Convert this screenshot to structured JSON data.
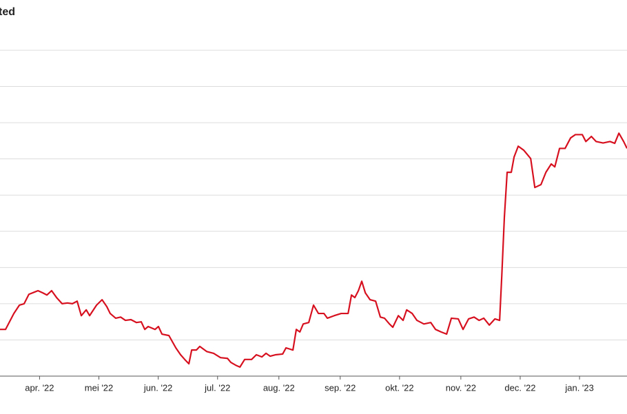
{
  "chart_data": {
    "type": "line",
    "title": "ted",
    "xlim": [
      0,
      317
    ],
    "xticks": [
      {
        "value": 20,
        "label": "apr. '22"
      },
      {
        "value": 50,
        "label": "mei '22"
      },
      {
        "value": 80,
        "label": "jun. '22"
      },
      {
        "value": 110,
        "label": "jul. '22"
      },
      {
        "value": 141,
        "label": "aug. '22"
      },
      {
        "value": 172,
        "label": "sep. '22"
      },
      {
        "value": 202,
        "label": "okt. '22"
      },
      {
        "value": 233,
        "label": "nov. '22"
      },
      {
        "value": 263,
        "label": "dec. '22"
      },
      {
        "value": 293,
        "label": "jan. '23"
      }
    ],
    "ylim": [
      0,
      9
    ],
    "gridlines": [
      0,
      1,
      2,
      3,
      4,
      5,
      6,
      7,
      8,
      9
    ],
    "grid": true,
    "x": [
      0,
      2.8,
      7,
      9.8,
      12.2,
      14.6,
      17.4,
      19.2,
      21.6,
      23.7,
      26.1,
      28.6,
      31.4,
      34.1,
      36.6,
      39,
      41.1,
      43.6,
      45.3,
      48.8,
      51.6,
      54,
      55.7,
      58.5,
      61,
      63.4,
      66.2,
      69,
      71.4,
      73.2,
      74.9,
      78.4,
      80.1,
      81.9,
      85.4,
      88.9,
      91.3,
      93.4,
      95.5,
      96.9,
      99.3,
      101,
      104.5,
      108,
      111.5,
      115,
      116.7,
      119.2,
      121.3,
      123.7,
      127.2,
      129.6,
      132.4,
      134.5,
      136.6,
      139.4,
      142.9,
      144.6,
      148.1,
      149.8,
      151.6,
      153.3,
      156.1,
      158.5,
      161,
      163.8,
      165.5,
      169,
      172.5,
      176,
      177.7,
      179.4,
      181.2,
      182.9,
      184.7,
      187.1,
      189.9,
      192.3,
      194.4,
      196.9,
      198.6,
      201.4,
      203.8,
      205.6,
      208.4,
      210.8,
      214.3,
      217.8,
      220.2,
      223,
      225.8,
      228.2,
      231.7,
      234.1,
      236.9,
      239.7,
      242.2,
      244.6,
      247.4,
      250.2,
      252.6,
      253.7,
      255,
      256.4,
      258.5,
      259.9,
      262,
      264.8,
      268.3,
      270.4,
      273.5,
      276,
      278.7,
      280.5,
      282.9,
      285.7,
      288.5,
      290.9,
      294.4,
      296.2,
      299,
      301.4,
      304.9,
      308.4,
      310.8,
      312.9,
      315.3,
      317
    ],
    "series": [
      {
        "color": "#d7101f",
        "values": [
          1.29,
          1.29,
          1.73,
          1.96,
          2.0,
          2.26,
          2.32,
          2.36,
          2.3,
          2.24,
          2.36,
          2.17,
          2.0,
          2.02,
          2.0,
          2.07,
          1.67,
          1.83,
          1.67,
          1.96,
          2.11,
          1.92,
          1.73,
          1.6,
          1.63,
          1.54,
          1.56,
          1.48,
          1.5,
          1.29,
          1.37,
          1.29,
          1.37,
          1.16,
          1.12,
          0.78,
          0.59,
          0.46,
          0.34,
          0.72,
          0.72,
          0.82,
          0.68,
          0.63,
          0.51,
          0.49,
          0.38,
          0.3,
          0.25,
          0.46,
          0.46,
          0.59,
          0.53,
          0.63,
          0.55,
          0.59,
          0.61,
          0.78,
          0.72,
          1.29,
          1.22,
          1.44,
          1.48,
          1.96,
          1.73,
          1.73,
          1.6,
          1.67,
          1.73,
          1.73,
          2.24,
          2.17,
          2.36,
          2.62,
          2.3,
          2.11,
          2.07,
          1.63,
          1.6,
          1.44,
          1.35,
          1.67,
          1.54,
          1.83,
          1.73,
          1.54,
          1.44,
          1.48,
          1.29,
          1.22,
          1.16,
          1.6,
          1.58,
          1.29,
          1.58,
          1.63,
          1.54,
          1.6,
          1.41,
          1.58,
          1.54,
          2.78,
          4.39,
          5.63,
          5.63,
          6.05,
          6.35,
          6.24,
          6.01,
          5.21,
          5.29,
          5.63,
          5.86,
          5.78,
          6.29,
          6.29,
          6.58,
          6.67,
          6.67,
          6.48,
          6.62,
          6.48,
          6.44,
          6.48,
          6.43,
          6.71,
          6.48,
          6.29
        ]
      }
    ]
  }
}
